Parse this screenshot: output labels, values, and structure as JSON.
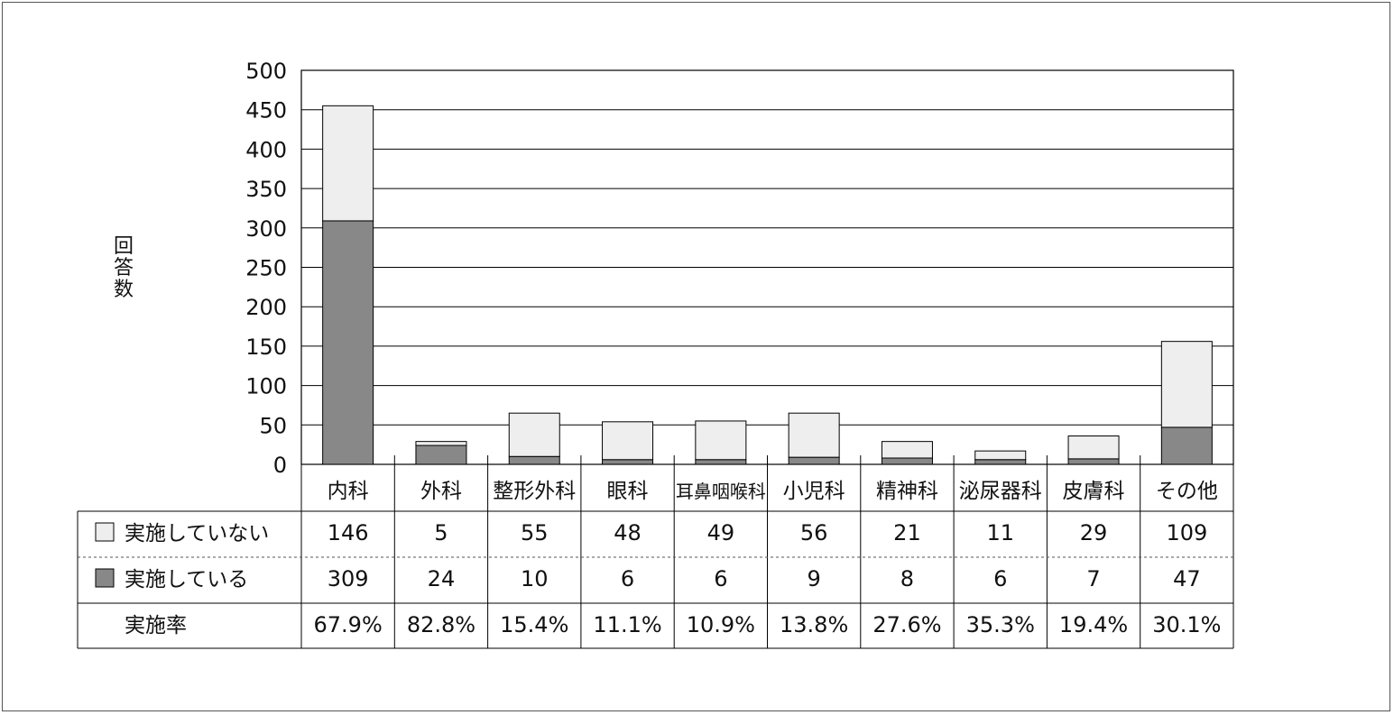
{
  "chart_data": {
    "type": "bar",
    "stacked": true,
    "ylabel": "回答数",
    "ylim": [
      0,
      500
    ],
    "yticks": [
      0,
      50,
      100,
      150,
      200,
      250,
      300,
      350,
      400,
      450,
      500
    ],
    "grid": true,
    "categories": [
      "内科",
      "外科",
      "整形外科",
      "眼科",
      "耳鼻咽喉科",
      "小児科",
      "精神科",
      "泌尿器科",
      "皮膚科",
      "その他"
    ],
    "series": [
      {
        "name": "実施している",
        "values": [
          309,
          24,
          10,
          6,
          6,
          9,
          8,
          6,
          7,
          47
        ],
        "color": "#888888"
      },
      {
        "name": "実施していない",
        "values": [
          146,
          5,
          55,
          48,
          49,
          56,
          21,
          11,
          29,
          109
        ],
        "color": "#eeeeee"
      }
    ],
    "table": {
      "rows": [
        {
          "label": "実施していない",
          "values": [
            "146",
            "5",
            "55",
            "48",
            "49",
            "56",
            "21",
            "11",
            "29",
            "109"
          ]
        },
        {
          "label": "実施している",
          "values": [
            "309",
            "24",
            "10",
            "6",
            "6",
            "9",
            "8",
            "6",
            "7",
            "47"
          ]
        },
        {
          "label": "実施率",
          "values": [
            "67.9%",
            "82.8%",
            "15.4%",
            "11.1%",
            "10.9%",
            "13.8%",
            "27.6%",
            "35.3%",
            "19.4%",
            "30.1%"
          ]
        }
      ]
    }
  }
}
